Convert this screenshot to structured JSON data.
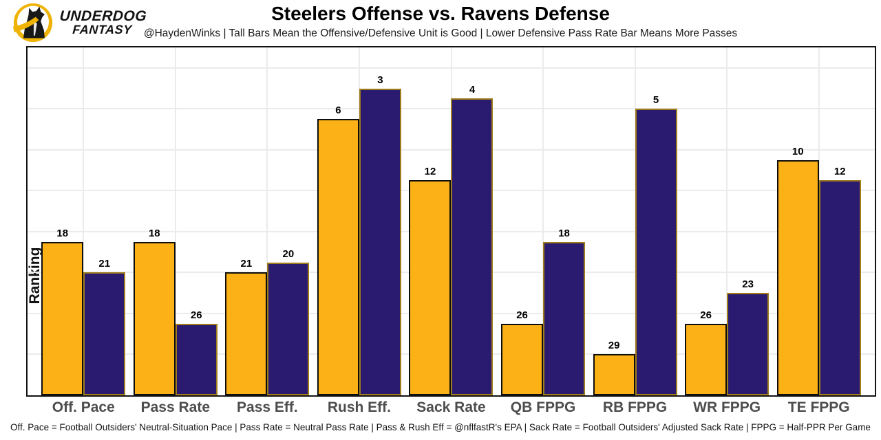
{
  "header": {
    "brand_line1": "UNDERDOG",
    "brand_line2": "FANTASY",
    "title": "Steelers Offense vs. Ravens Defense",
    "subtitle": "@HaydenWinks | Tall Bars Mean the Offensive/Defensive Unit is Good | Lower Defensive Pass Rate Bar Means More Passes"
  },
  "colors": {
    "steelers_gold": "#FCB216",
    "steelers_outline": "#0d0d0d",
    "ravens_purple": "#2A1B70",
    "ravens_outline": "#A07D1C",
    "grid": "#ebebeb",
    "axis_text": "#4d4d4d",
    "logo_yellow": "#EFB306"
  },
  "chart_data": {
    "type": "bar",
    "title": "Steelers Offense vs. Ravens Defense",
    "subtitle": "@HaydenWinks | Tall Bars Mean the Offensive/Defensive Unit is Good | Lower Defensive Pass Rate Bar Means More Passes",
    "ylabel": "Ranking",
    "xlabel": "",
    "categories": [
      "Off. Pace",
      "Pass Rate",
      "Pass Eff.",
      "Rush Eff.",
      "Sack Rate",
      "QB FPPG",
      "RB FPPG",
      "WR FPPG",
      "TE FPPG"
    ],
    "series": [
      {
        "name": "Steelers Offense",
        "fill": "#FCB216",
        "outline": "#0d0d0d",
        "values": [
          18,
          18,
          21,
          6,
          12,
          26,
          29,
          26,
          10
        ]
      },
      {
        "name": "Ravens Defense",
        "fill": "#2A1B70",
        "outline": "#A07D1C",
        "values": [
          21,
          26,
          20,
          3,
          4,
          18,
          5,
          23,
          12
        ]
      }
    ],
    "value_note": "labels are NFL ranks; bar height drawn as (33 - rank), taller = better",
    "plot_base": 33,
    "ylim": [
      0,
      34
    ],
    "grid_step": 4,
    "grid": "on",
    "legend": "none"
  },
  "footer": {
    "note": "Off. Pace = Football Outsiders' Neutral-Situation Pace | Pass Rate = Neutral Pass Rate | Pass & Rush Eff = @nflfastR's EPA | Sack Rate = Football Outsiders' Adjusted Sack Rate | FPPG = Half-PPR Per Game"
  }
}
